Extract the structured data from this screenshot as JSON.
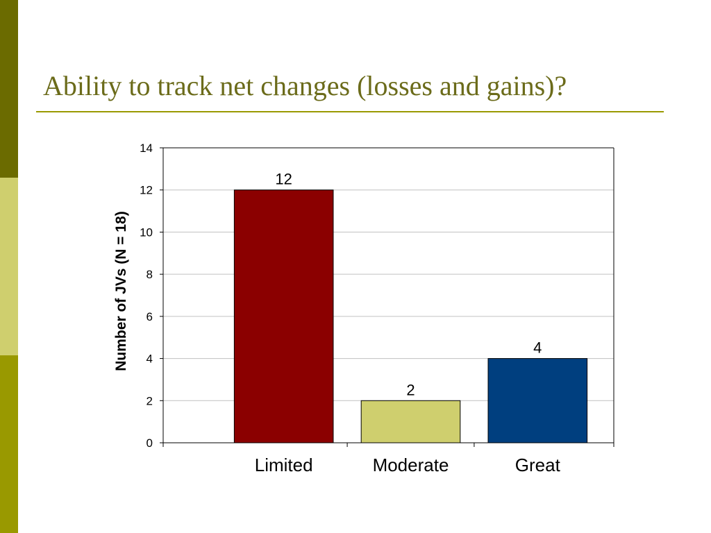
{
  "slide": {
    "title": "Ability to track net changes (losses and gains)?"
  },
  "colors": {
    "sidebar_top": "#6b6b00",
    "sidebar_mid": "#cfcf6e",
    "sidebar_bottom": "#999900",
    "title_text": "#6b6b1a",
    "title_rule": "#999900",
    "axis": "#000000",
    "gridline": "#c0c0c0"
  },
  "chart_data": {
    "type": "bar",
    "title": "",
    "xlabel": "",
    "ylabel": "Number of JVs (N = 18)",
    "categories": [
      "Limited",
      "Moderate",
      "Great"
    ],
    "values": [
      12,
      2,
      4
    ],
    "data_labels": [
      "12",
      "2",
      "4"
    ],
    "bar_colors": [
      "#8b0000",
      "#cfcf6e",
      "#003f7f"
    ],
    "ylim": [
      0,
      14
    ],
    "yticks": [
      0,
      2,
      4,
      6,
      8,
      10,
      12,
      14
    ],
    "grid": true,
    "legend": "none"
  }
}
